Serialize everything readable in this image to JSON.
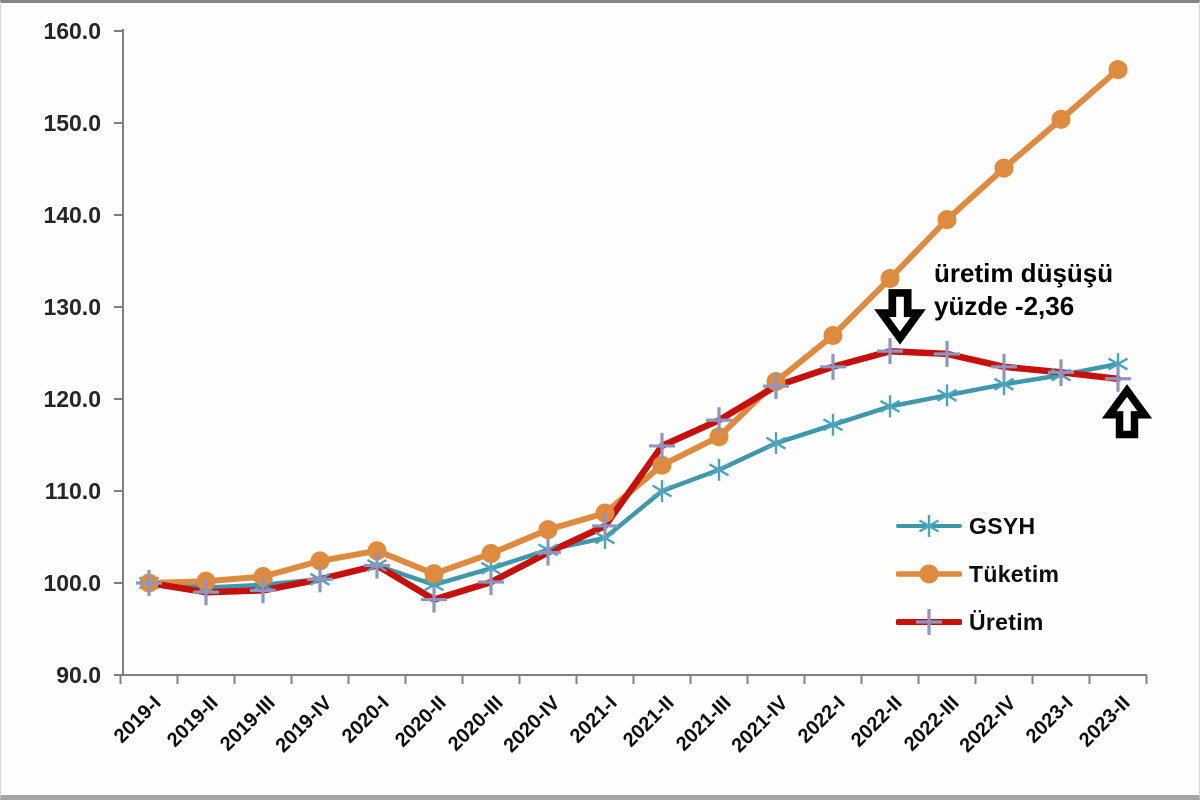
{
  "chart_data": {
    "type": "line",
    "title": "",
    "xlabel": "",
    "ylabel": "",
    "categories": [
      "2019-I",
      "2019-II",
      "2019-III",
      "2019-IV",
      "2020-I",
      "2020-II",
      "2020-III",
      "2020-IV",
      "2021-I",
      "2021-II",
      "2021-III",
      "2021-IV",
      "2022-I",
      "2022-II",
      "2022-III",
      "2022-IV",
      "2023-I",
      "2023-II"
    ],
    "series": [
      {
        "name": "GSYH",
        "color": "#3F97AC",
        "marker": "star",
        "marker_color": "#4BA5BC",
        "values": [
          100.0,
          99.5,
          99.8,
          100.4,
          101.9,
          99.8,
          101.6,
          103.6,
          104.9,
          110.0,
          112.3,
          115.2,
          117.2,
          119.2,
          120.4,
          121.6,
          122.6,
          123.8
        ]
      },
      {
        "name": "Tüketim",
        "color": "#DE8A3F",
        "marker": "circle",
        "marker_color": "#DE8A3F",
        "values": [
          100.0,
          100.2,
          100.7,
          102.4,
          103.5,
          101.0,
          103.2,
          105.8,
          107.6,
          112.8,
          115.9,
          121.9,
          126.9,
          133.1,
          139.5,
          145.1,
          150.4,
          155.8
        ]
      },
      {
        "name": "Üretim",
        "color": "#C5100C",
        "marker": "plus",
        "marker_color": "#8E96C0",
        "values": [
          100.0,
          99.0,
          99.2,
          100.4,
          101.9,
          98.2,
          100.1,
          103.3,
          106.2,
          114.9,
          117.7,
          121.4,
          123.5,
          125.2,
          124.9,
          123.5,
          122.9,
          122.2
        ]
      }
    ],
    "ylim": [
      90,
      160
    ],
    "ytick_step": 10,
    "ytick_labels": [
      "90.0",
      "100.0",
      "110.0",
      "120.0",
      "130.0",
      "140.0",
      "150.0",
      "160.0"
    ],
    "grid": false,
    "legend_position": "middle-right",
    "annotation": {
      "line1": "üretim düşüşü",
      "line2": "yüzde -2,36"
    }
  },
  "colors": {
    "axis": "#808080",
    "ytick_label": "#262626",
    "category_label": "#0d0d0d",
    "annotation_text": "#000000",
    "arrow_fill": "#ffffff",
    "arrow_outline": "#000000"
  }
}
